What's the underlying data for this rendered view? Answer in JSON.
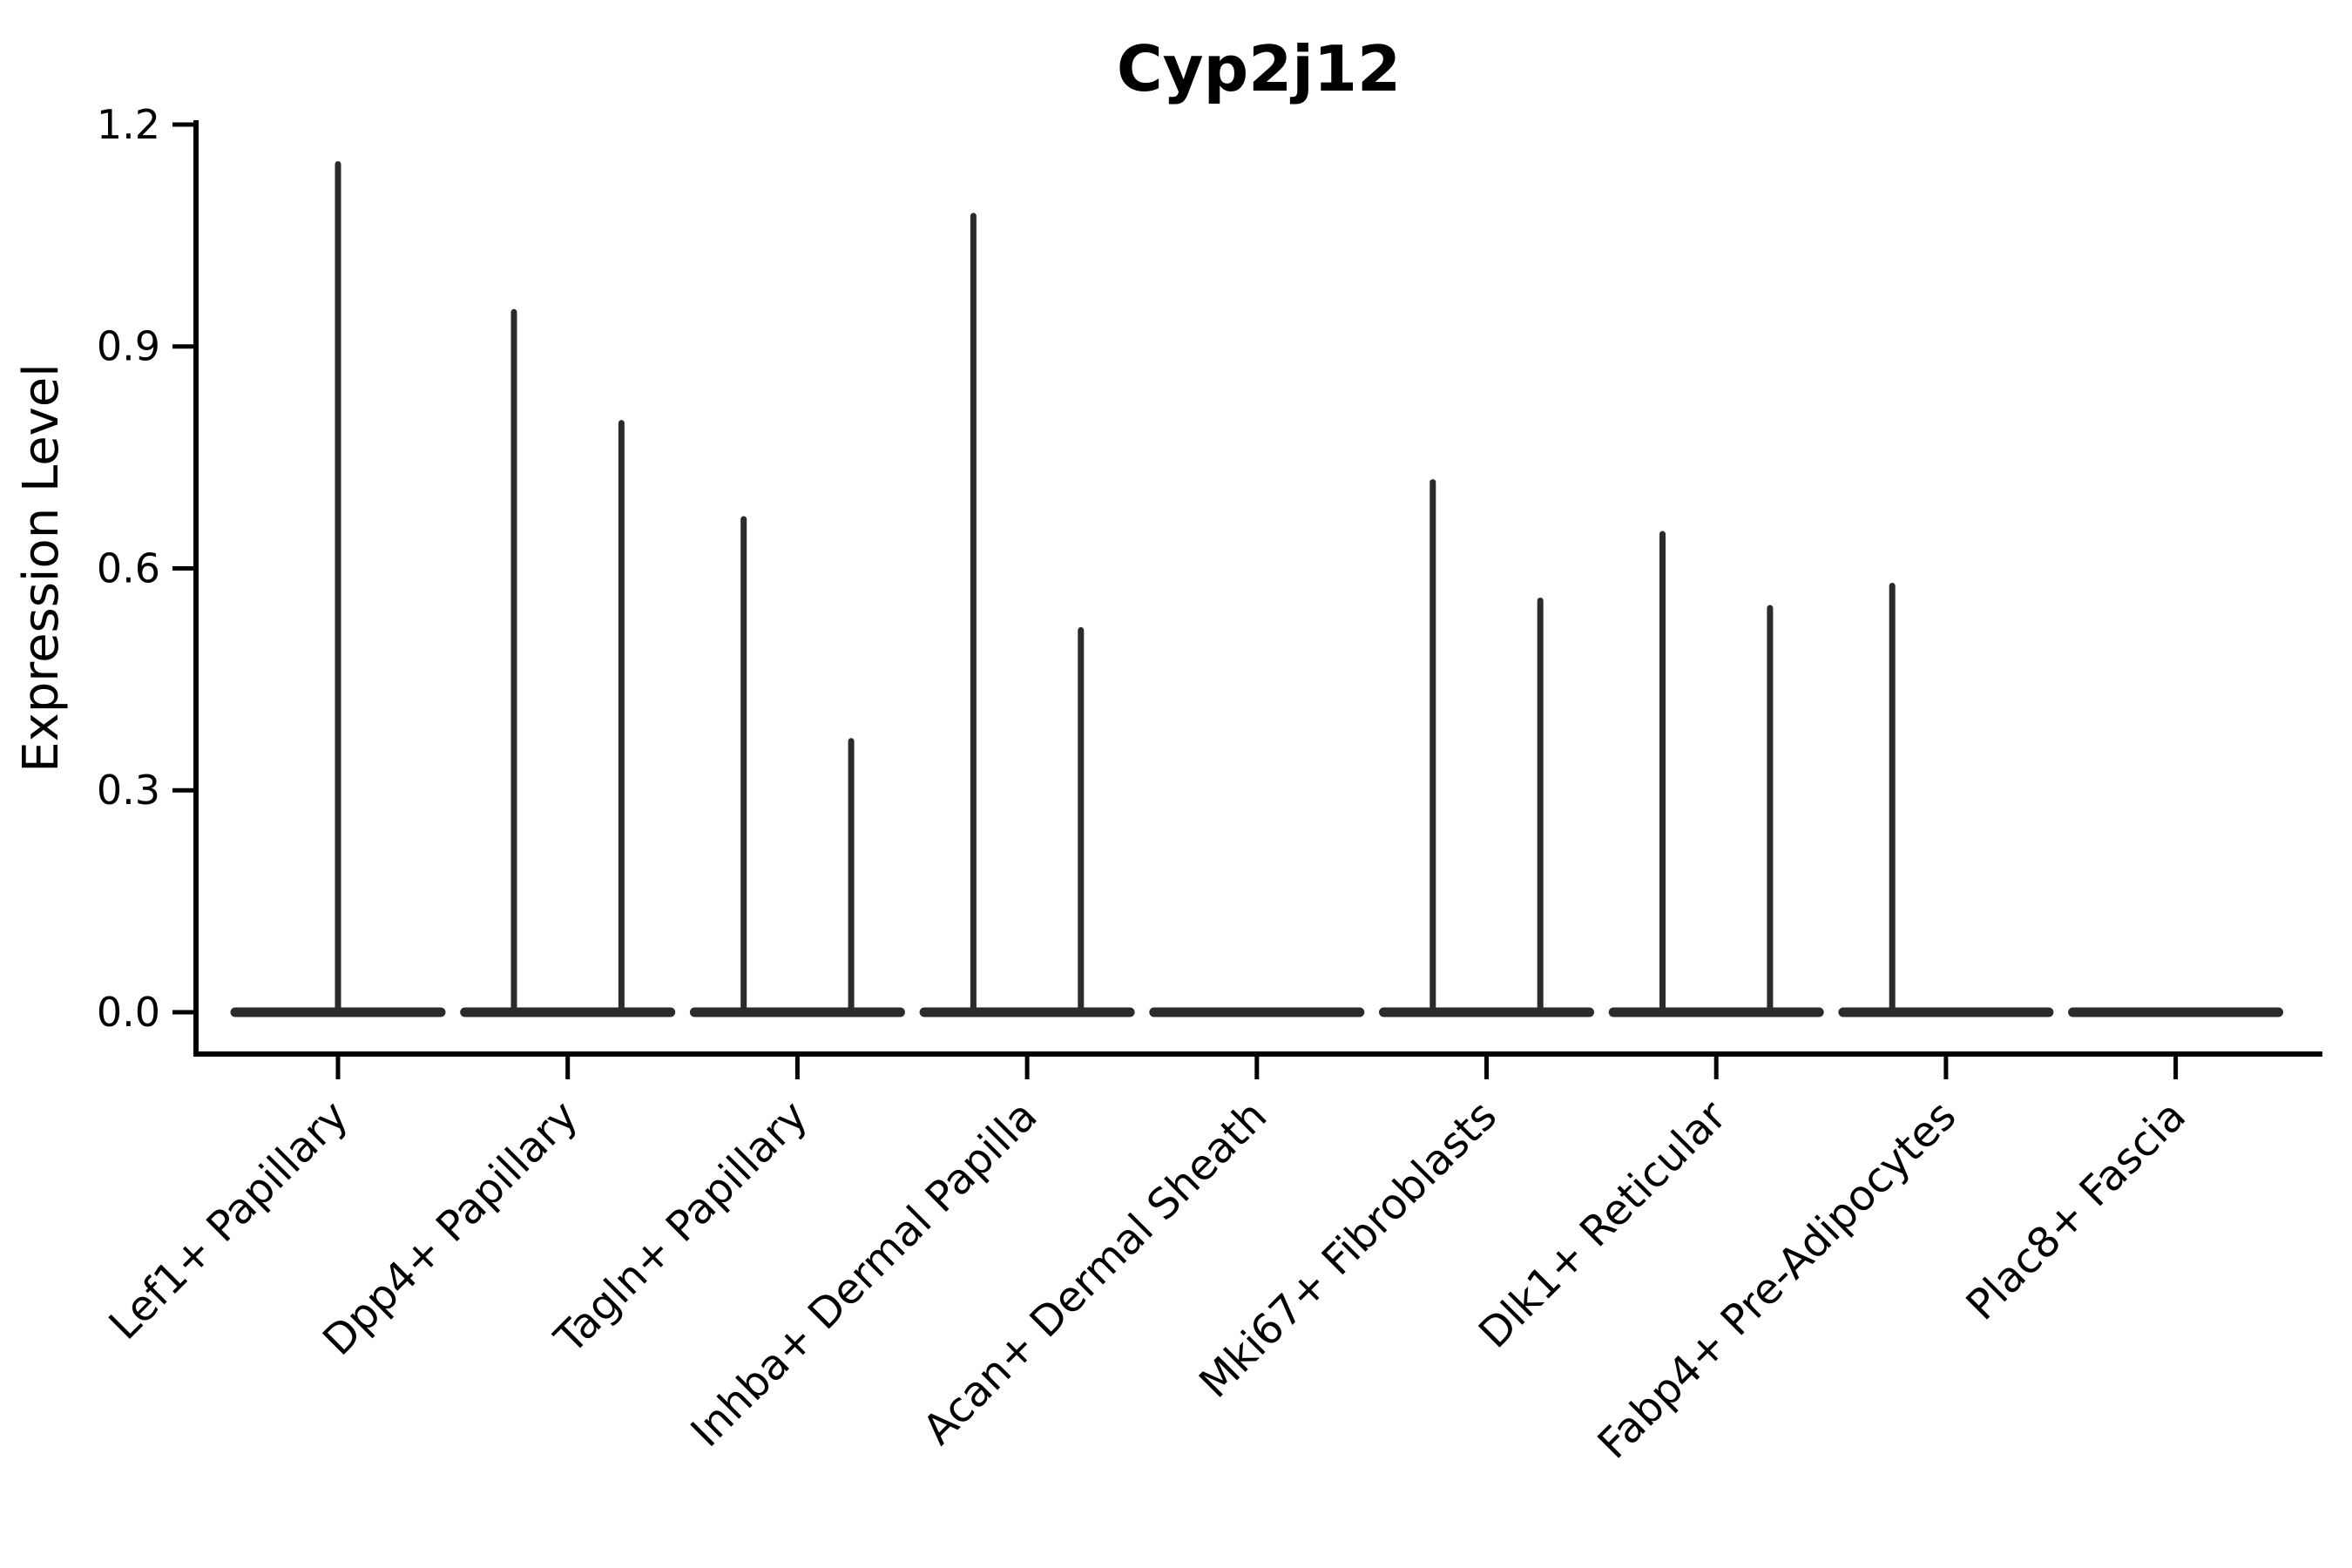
{
  "chart_data": {
    "type": "violin",
    "title": "Cyp2j12",
    "ylabel": "Expression Level",
    "xlabel": "",
    "ylim": [
      0,
      1.2
    ],
    "yticks": [
      "0.0",
      "0.3",
      "0.6",
      "0.9",
      "1.2"
    ],
    "ytick_values": [
      0,
      0.3,
      0.6,
      0.9,
      1.2
    ],
    "grid": false,
    "legend": "none",
    "description": "Violin plot of gene expression per cell type; each category shows a flat violin base at 0 with thin density spikes rising to the maximum expression value.",
    "categories": [
      {
        "label": "Lef1+ Papillary",
        "spikes": [
          {
            "pos": "center",
            "value": 1.15
          }
        ]
      },
      {
        "label": "Dpp4+ Papillary",
        "spikes": [
          {
            "pos": "left",
            "value": 0.95
          },
          {
            "pos": "right",
            "value": 0.8
          }
        ]
      },
      {
        "label": "Tagln+ Papillary",
        "spikes": [
          {
            "pos": "left",
            "value": 0.67
          },
          {
            "pos": "right",
            "value": 0.37
          }
        ]
      },
      {
        "label": "Inhba+ Dermal Papilla",
        "spikes": [
          {
            "pos": "left",
            "value": 1.08
          },
          {
            "pos": "right",
            "value": 0.52
          }
        ]
      },
      {
        "label": "Acan+ Dermal Sheath",
        "spikes": []
      },
      {
        "label": "Mki67+ Fibroblasts",
        "spikes": [
          {
            "pos": "left",
            "value": 0.72
          },
          {
            "pos": "right",
            "value": 0.56
          }
        ]
      },
      {
        "label": "Dlk1+ Reticular",
        "spikes": [
          {
            "pos": "left",
            "value": 0.65
          },
          {
            "pos": "right",
            "value": 0.55
          }
        ]
      },
      {
        "label": "Fabp4+ Pre-Adipocytes",
        "spikes": [
          {
            "pos": "left",
            "value": 0.58
          }
        ]
      },
      {
        "label": "Plac8+ Fascia",
        "spikes": []
      }
    ],
    "colors": {
      "violin": "#2b2b2b",
      "axis": "#000000",
      "text": "#000000",
      "background": "#ffffff"
    }
  }
}
